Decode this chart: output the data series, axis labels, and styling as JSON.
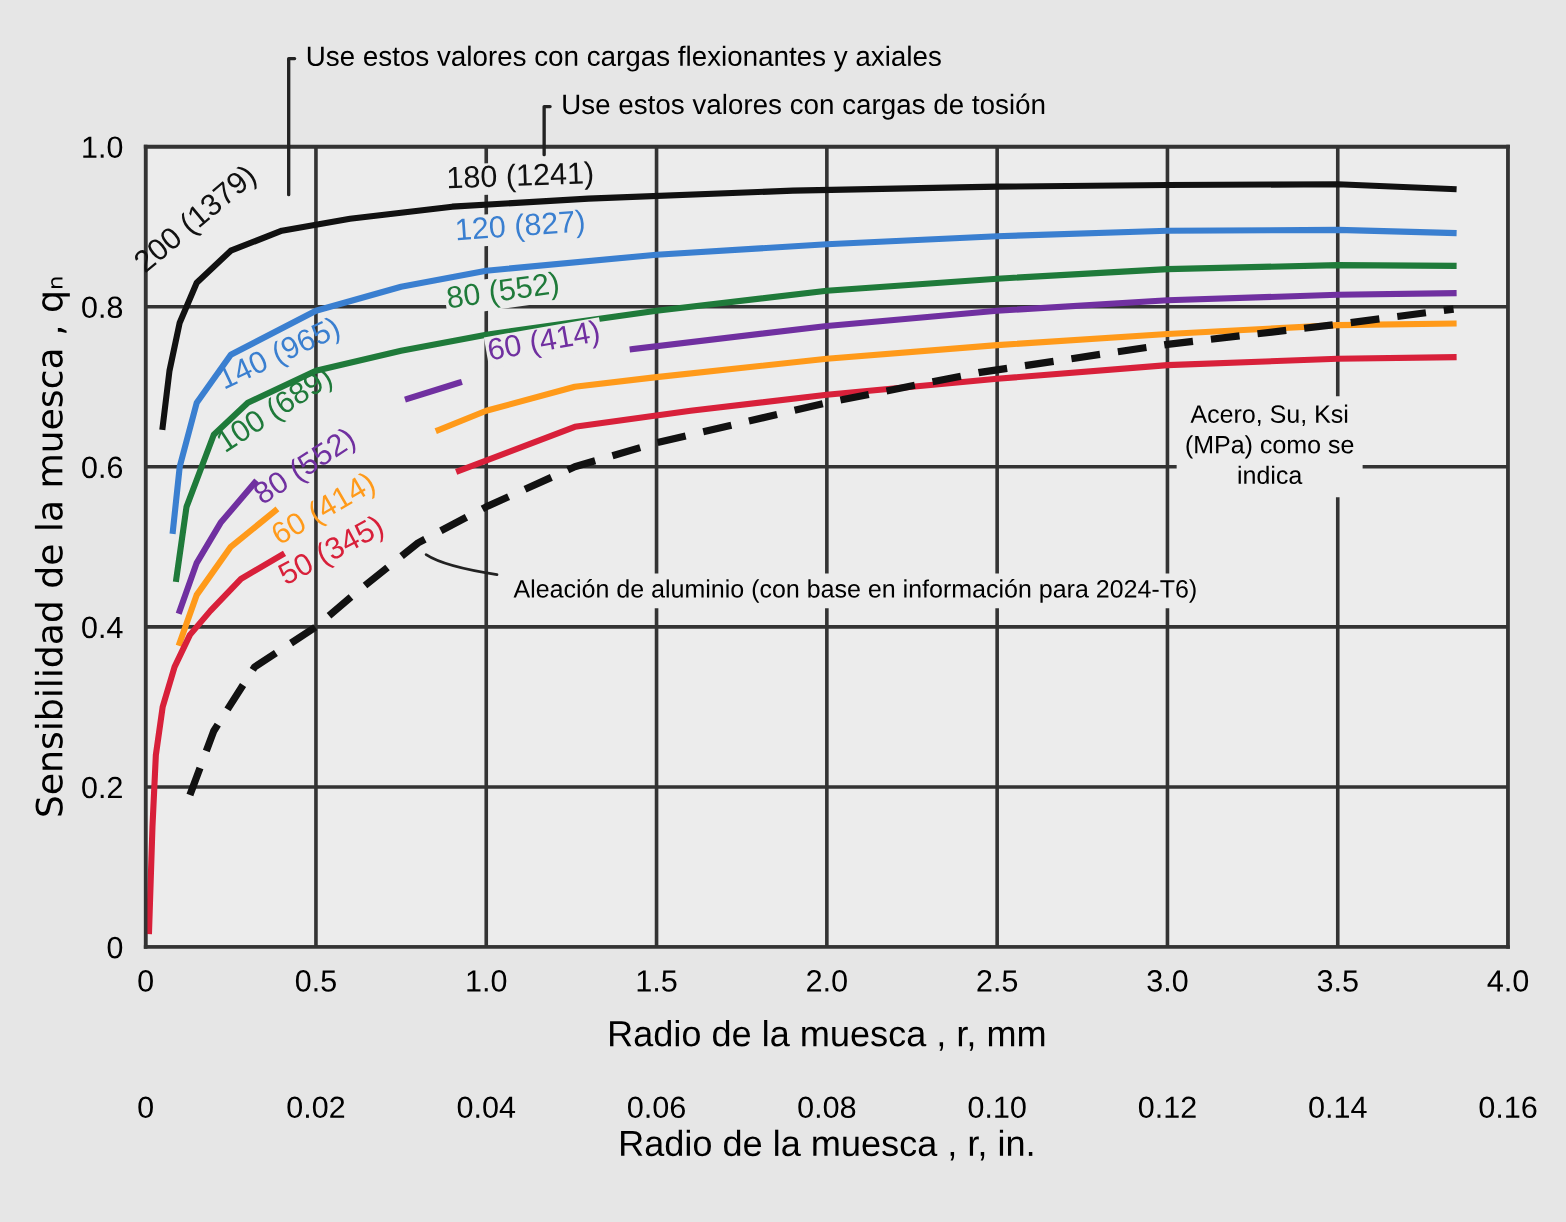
{
  "chart_data": {
    "type": "line",
    "xlabel": "Radio de la muesca , r, mm",
    "ylabel": "Sensibilidad de la muesca , qₙ",
    "x2label": "Radio de la muesca , r, in.",
    "xlim": [
      0,
      4.0
    ],
    "xticks": [
      0,
      0.5,
      {
        "value": 1.0,
        "label": "1.0"
      },
      1.5,
      {
        "value": 2.0,
        "label": "2.0"
      },
      2.5,
      {
        "value": 3.0,
        "label": "3.0"
      },
      3.5,
      {
        "value": 4.0,
        "label": "4.0"
      }
    ],
    "x2lim": [
      0,
      0.16
    ],
    "x2ticks": [
      0,
      0.02,
      0.04,
      0.06,
      0.08,
      {
        "value": 0.1,
        "label": "0.10"
      },
      0.12,
      0.14,
      0.16
    ],
    "ylim": [
      0,
      1.0
    ],
    "yticks": [
      0,
      0.2,
      0.4,
      0.6,
      0.8,
      {
        "value": 1.0,
        "label": "1.0"
      }
    ],
    "grid": true,
    "legend": false,
    "series": [
      {
        "name": "200 (1379)",
        "color": "#111111",
        "x": [
          0.05,
          0.07,
          0.1,
          0.15,
          0.25,
          0.4,
          0.6,
          0.9,
          1.3,
          1.9,
          2.5,
          3.0,
          3.5,
          3.84
        ],
        "values": [
          0.65,
          0.72,
          0.78,
          0.83,
          0.87,
          0.895,
          0.91,
          0.925,
          0.935,
          0.945,
          0.95,
          0.952,
          0.953,
          0.947
        ]
      },
      {
        "name": "140 (965)",
        "color": "#3a7fd0",
        "x": [
          0.08,
          0.1,
          0.15,
          0.25,
          0.5,
          0.75,
          1.0,
          1.5,
          2.0,
          2.5,
          3.0,
          3.5,
          3.84
        ],
        "values": [
          0.52,
          0.6,
          0.68,
          0.74,
          0.795,
          0.825,
          0.845,
          0.865,
          0.878,
          0.888,
          0.895,
          0.896,
          0.892
        ]
      },
      {
        "name": "100 (689)",
        "color": "#1f7a3a",
        "x": [
          0.09,
          0.12,
          0.2,
          0.3,
          0.5,
          0.75,
          1.0,
          1.5,
          2.0,
          2.5,
          3.0,
          3.5,
          3.84
        ],
        "values": [
          0.46,
          0.55,
          0.64,
          0.68,
          0.72,
          0.745,
          0.765,
          0.795,
          0.82,
          0.835,
          0.847,
          0.852,
          0.851
        ]
      },
      {
        "name": "80 (552)",
        "color": "#7030a0",
        "x": [
          0.1,
          0.15,
          0.22,
          0.32,
          0.5,
          0.77,
          0.92,
          1.2,
          1.43,
          2.0,
          2.5,
          3.0,
          3.5,
          3.84
        ],
        "values": [
          0.42,
          0.48,
          0.53,
          0.58,
          null,
          0.685,
          0.705,
          null,
          0.747,
          0.776,
          0.795,
          0.808,
          0.815,
          0.817
        ]
      },
      {
        "name": "60 (414)",
        "color": "#ff9a1a",
        "x": [
          0.1,
          0.15,
          0.25,
          0.38,
          0.6,
          0.86,
          1.0,
          1.26,
          1.5,
          2.0,
          2.5,
          3.0,
          3.5,
          3.84
        ],
        "values": [
          0.38,
          0.44,
          0.5,
          0.545,
          null,
          0.646,
          0.67,
          0.7,
          0.712,
          0.735,
          0.752,
          0.766,
          0.777,
          0.779
        ]
      },
      {
        "name": "50 (345)",
        "color": "#d8203a",
        "x": [
          0.01,
          0.02,
          0.03,
          0.05,
          0.085,
          0.13,
          0.19,
          0.28,
          0.4,
          0.65,
          0.92,
          1.26,
          1.6,
          2.0,
          2.5,
          3.0,
          3.5,
          3.84
        ],
        "values": [
          0.02,
          0.15,
          0.24,
          0.3,
          0.35,
          0.39,
          0.42,
          0.46,
          0.49,
          null,
          0.595,
          0.65,
          0.67,
          0.69,
          0.71,
          0.727,
          0.735,
          0.737
        ]
      },
      {
        "color": "#111111",
        "line_style": "dashed",
        "x": [
          0.13,
          0.2,
          0.32,
          0.5,
          0.61,
          0.8,
          1.0,
          1.26,
          1.5,
          2.0,
          2.45,
          3.0,
          3.5,
          3.84
        ],
        "values": [
          0.19,
          0.27,
          0.35,
          0.4,
          0.44,
          0.505,
          0.55,
          0.6,
          0.63,
          0.68,
          0.718,
          0.753,
          0.778,
          0.797
        ]
      }
    ],
    "annotations": [
      "180 (1241)",
      "120 (827)",
      "80 (552)",
      "60 (414)",
      "Use estos valores con cargas flexionantes y axiales",
      "Use estos valores con cargas de tosión",
      {
        "text": "Aleación de aluminio (con base en información para 2024-T6)",
        "x": 0.8,
        "y": 0.5
      },
      "Acero, Su, Ksi\n(MPa) como se\nindica"
    ]
  }
}
